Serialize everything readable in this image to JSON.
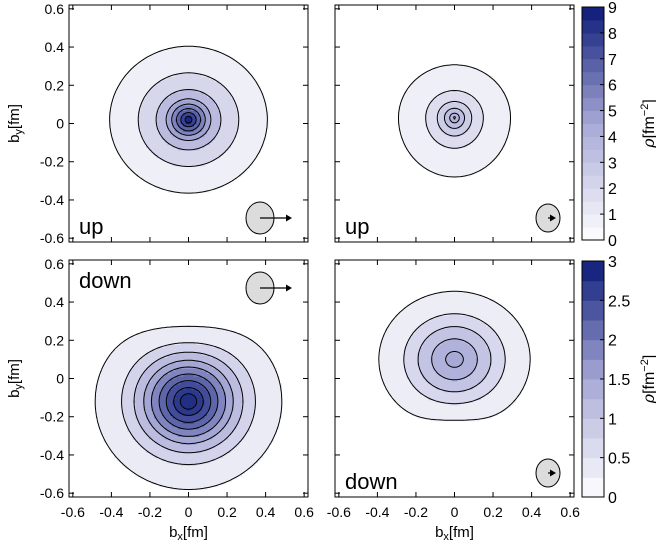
{
  "chart_data": {
    "type": "contour",
    "x_axis_label": "b",
    "x_axis_label_sub": "x",
    "x_axis_unit": "[fm]",
    "y_axis_label": "b",
    "y_axis_label_sub": "y",
    "y_axis_unit": "[fm]",
    "x_ticks": [
      "-0.6",
      "-0.4",
      "-0.2",
      "0",
      "0.2",
      "0.4",
      "0.6"
    ],
    "x_tick_values": [
      -0.6,
      -0.4,
      -0.2,
      0,
      0.2,
      0.4,
      0.6
    ],
    "y_ticks": [
      "0.6",
      "0.4",
      "0.2",
      "0",
      "-0.2",
      "-0.4",
      "-0.6"
    ],
    "y_tick_values": [
      0.6,
      0.4,
      0.2,
      0,
      -0.2,
      -0.4,
      -0.6
    ],
    "xlim": [
      -0.62,
      0.62
    ],
    "ylim": [
      -0.62,
      0.62
    ],
    "colors": {
      "low": "#ffffff",
      "mid": "#a7a8d6",
      "high": "#0b1a78",
      "line": "#000000"
    },
    "colorbars": [
      {
        "id": "top",
        "label_rho": "ρ",
        "label_unit": "[fm",
        "label_exp": "−2",
        "label_close": "]",
        "tick_labels": [
          "9",
          "8",
          "7",
          "6",
          "5",
          "4",
          "3",
          "2",
          "1",
          "0"
        ],
        "tick_values": [
          9,
          8,
          7,
          6,
          5,
          4,
          3,
          2,
          1,
          0
        ],
        "range": [
          0,
          9
        ]
      },
      {
        "id": "bottom",
        "label_rho": "ρ",
        "label_unit": "[fm",
        "label_exp": "−2",
        "label_close": "]",
        "tick_labels": [
          "3",
          "2.5",
          "2",
          "1.5",
          "1",
          "0.5",
          "0"
        ],
        "tick_values": [
          3,
          2.5,
          2,
          1.5,
          1,
          0.5,
          0
        ],
        "range": [
          0,
          3
        ]
      }
    ],
    "panels": [
      {
        "id": "top-left",
        "label": "up",
        "label_position": "bottom-left",
        "arrow_icon": "polarization-arrow-icon",
        "icon_position": "bottom-right",
        "icon_size": "large",
        "peak": {
          "x": 0.0,
          "y": 0.02,
          "value": 9.0
        },
        "levels": [
          0.35,
          1.3,
          2.8,
          4.2,
          5.2,
          6.2,
          7.2,
          8.2
        ],
        "colorbar": "top",
        "show_y_axis": true,
        "show_x_axis": false
      },
      {
        "id": "top-right",
        "label": "up",
        "label_position": "bottom-left",
        "arrow_icon": "polarization-arrow-icon",
        "icon_position": "bottom-right",
        "icon_size": "small",
        "peak": {
          "x": 0.0,
          "y": 0.03,
          "value": 4.4
        },
        "levels": [
          0.35,
          1.3,
          2.2,
          3.0,
          3.7,
          4.2
        ],
        "colorbar": "top",
        "show_y_axis": false,
        "show_x_axis": false
      },
      {
        "id": "bottom-left",
        "label": "down",
        "label_position": "top-left",
        "arrow_icon": "polarization-arrow-icon",
        "icon_position": "top-right",
        "icon_size": "large",
        "peak": {
          "x": 0.0,
          "y": -0.12,
          "value": 2.8
        },
        "levels": [
          0.13,
          0.55,
          0.95,
          1.35,
          1.7,
          2.05,
          2.35,
          2.6,
          2.75
        ],
        "colorbar": "bottom",
        "show_y_axis": true,
        "show_x_axis": true
      },
      {
        "id": "bottom-right",
        "label": "down",
        "label_position": "bottom-left",
        "arrow_icon": "polarization-arrow-icon",
        "icon_position": "bottom-right",
        "icon_size": "small",
        "peak": {
          "x": 0.0,
          "y": 0.1,
          "value": 1.5
        },
        "levels": [
          0.13,
          0.5,
          0.85,
          1.2,
          1.45
        ],
        "colorbar": "bottom",
        "show_y_axis": false,
        "show_x_axis": true
      }
    ]
  }
}
